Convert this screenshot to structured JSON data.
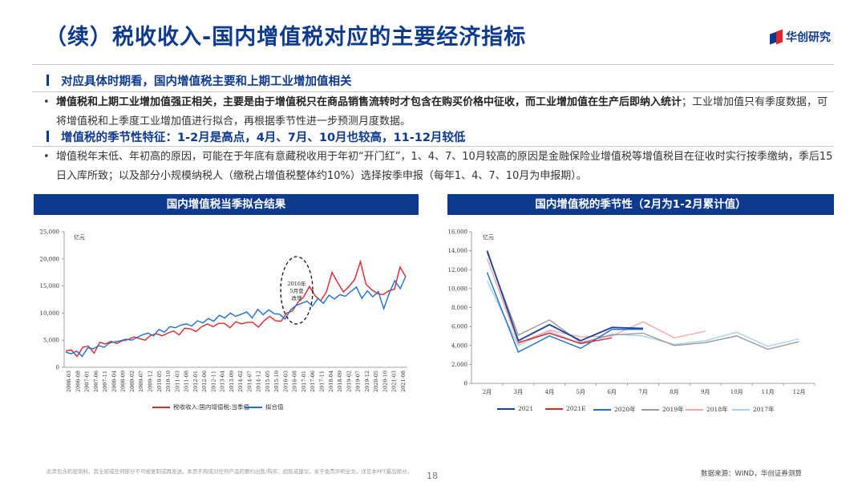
{
  "header": {
    "title": "（续）税收收入-国内增值税对应的主要经济指标",
    "logo_text": "华创研究"
  },
  "section1": {
    "heading": "对应具体时期看，国内增值税主要和上期工业增加值相关",
    "bold_text": "增值税和上期工业增加值强正相关，主要是由于增值税只在商品销售流转时才包含在购买价格中征收，而工业增加值在生产后即纳入统计",
    "rest_text": "；工业增加值只有季度数据，可将增值税和上季度工业增加值进行拟合，再根据季节性进一步预测月度数据。"
  },
  "section2": {
    "heading": "增值税的季节性特征：1-2月是高点，4月、7月、10月也较高，11-12月较低",
    "text": "增值税年末低、年初高的原因，可能在于年底有意藏税收用于年初“开门红”，1、4、7、10月较高的原因是金融保险业增值税等增值税目在征收时实行按季缴纳，季后15日入库所致；以及部分小规模纳税人（缴税占增值税整体约10%）选择按季申报（每年1、4、7、10月为申报期）。"
  },
  "colors": {
    "brand": "#0d3a8c",
    "accent_red": "#e0262d"
  },
  "chart_data": [
    {
      "type": "line",
      "panel_title": "国内增值税当季拟合结果",
      "unit_label": "亿元",
      "annotation": "2016年5月营改增",
      "ylim": [
        0,
        25000
      ],
      "yticks": [
        "0",
        "5,000",
        "10,000",
        "15,000",
        "20,000",
        "25,000"
      ],
      "xticks": [
        "2006-03",
        "2006-08",
        "2007-01",
        "2007-06",
        "2007-11",
        "2008-04",
        "2008-09",
        "2009-02",
        "2009-07",
        "2009-12",
        "2010-05",
        "2010-10",
        "2011-03",
        "2011-08",
        "2012-01",
        "2012-06",
        "2012-11",
        "2013-04",
        "2013-09",
        "2014-02",
        "2014-07",
        "2014-12",
        "2015-05",
        "2015-10",
        "2016-03",
        "2016-08",
        "2017-01",
        "2017-06",
        "2017-11",
        "2018-04",
        "2018-09",
        "2019-02",
        "2019-07",
        "2019-12",
        "2020-05",
        "2020-10",
        "2021-03",
        "2021-08"
      ],
      "series": [
        {
          "name": "税收收入:国内增值税:当季值",
          "color": "#e0262d",
          "values": [
            3000,
            3200,
            2000,
            3700,
            3900,
            2600,
            4600,
            4300,
            4800,
            4400,
            4900,
            5100,
            5600,
            5300,
            5000,
            5900,
            6200,
            5800,
            6300,
            6700,
            6000,
            7200,
            7100,
            6600,
            7500,
            8000,
            7500,
            8100,
            8100,
            7300,
            8400,
            8000,
            8300,
            8300,
            7400,
            8600,
            9400,
            8600,
            8500,
            10000,
            10400,
            12000,
            13000,
            14900,
            13200,
            12300,
            13900,
            17500,
            15600,
            13900,
            14900,
            16200,
            19500,
            15300,
            14300,
            13600,
            13400,
            14100,
            14400,
            18500,
            16700
          ]
        },
        {
          "name": "拟合值",
          "color": "#1f6fd0",
          "values": [
            2800,
            2500,
            3000,
            2000,
            3600,
            3400,
            4000,
            3700,
            4500,
            4700,
            4900,
            5200,
            5000,
            5500,
            6000,
            6300,
            5800,
            7000,
            6500,
            7500,
            7300,
            7800,
            8000,
            7600,
            8600,
            8200,
            9000,
            8500,
            9600,
            9100,
            10000,
            9400,
            9800,
            10200,
            9100,
            10700,
            9700,
            10600,
            9900,
            9800,
            8900,
            10600,
            11400,
            11800,
            12200,
            11300,
            12700,
            11800,
            13300,
            12600,
            13400,
            13100,
            14000,
            14800,
            12700,
            14100,
            13000,
            14000,
            10800,
            13700,
            16000,
            14500,
            16800
          ]
        }
      ],
      "legend_position": "bottom"
    },
    {
      "type": "line",
      "panel_title": "国内增值税的季节性（2月为1-2月累计值）",
      "unit_label": "亿元",
      "ylim": [
        0,
        16000
      ],
      "yticks": [
        "0",
        "2,000",
        "4,000",
        "6,000",
        "8,000",
        "10,000",
        "12,000",
        "14,000",
        "16,000"
      ],
      "categories": [
        "2月",
        "3月",
        "4月",
        "5月",
        "6月",
        "7月",
        "8月",
        "9月",
        "10月",
        "11月",
        "12月"
      ],
      "series": [
        {
          "name": "2021",
          "color": "#1f3f99",
          "values": [
            14000,
            4500,
            6200,
            4500,
            5900,
            5800,
            null,
            null,
            null,
            null,
            null
          ]
        },
        {
          "name": "2021E",
          "color": "#e0262d",
          "values": [
            null,
            4300,
            5300,
            4200,
            4800,
            null,
            null,
            null,
            null,
            null,
            null
          ]
        },
        {
          "name": "2020年",
          "color": "#1f6fd0",
          "values": [
            11700,
            3300,
            5000,
            3700,
            5700,
            5700,
            null,
            null,
            null,
            null,
            null
          ]
        },
        {
          "name": "2019年",
          "color": "#9a9a9a",
          "values": [
            13800,
            5100,
            6700,
            4300,
            5100,
            5300,
            4000,
            4300,
            5000,
            3600,
            4400
          ]
        },
        {
          "name": "2018年",
          "color": "#f4a9a9",
          "values": [
            13200,
            4200,
            5600,
            4900,
            5000,
            6500,
            4800,
            5500,
            null,
            null,
            null
          ]
        },
        {
          "name": "2017年",
          "color": "#a9cfee",
          "values": [
            10800,
            4000,
            5500,
            4200,
            5200,
            5000,
            4100,
            4500,
            5400,
            3900,
            4700
          ]
        }
      ],
      "legend_position": "bottom"
    }
  ],
  "footer": {
    "disclaimer": "此页包含机密资料，其全部或任何部分不可被复制或再发送。本页不构成对任何产品的要约出售/购买、招揽或建议。关于免责声明全文，详见本PPT最后部分。",
    "page_number": "18",
    "source": "数据来源：WIND，华创证券测算"
  }
}
